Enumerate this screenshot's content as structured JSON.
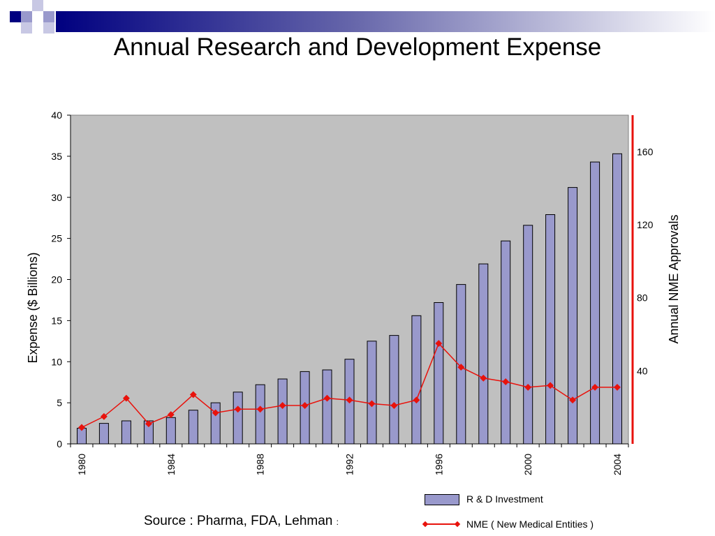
{
  "slide": {
    "title": "Annual Research and Development Expense",
    "source": "Source : Pharma, FDA, Lehman",
    "source_suffix": ":",
    "colors": {
      "bar_fill": "#9999cc",
      "line": "#e8120c",
      "plot_bg": "#c0c0c0",
      "right_axis": "#e8120c",
      "header_dark": "#000080",
      "header_light": "#9999cc"
    }
  },
  "chart_data": {
    "type": "bar",
    "categories": [
      "1980",
      "1981",
      "1982",
      "1983",
      "1984",
      "1985",
      "1986",
      "1987",
      "1988",
      "1989",
      "1990",
      "1991",
      "1992",
      "1993",
      "1994",
      "1995",
      "1996",
      "1997",
      "1998",
      "1999",
      "2000",
      "2001",
      "2002",
      "2003",
      "2004"
    ],
    "x_tick_labels": [
      "1980",
      "1984",
      "1988",
      "1992",
      "1996",
      "2000",
      "2004"
    ],
    "series": [
      {
        "name": "R & D Investment",
        "type": "bar",
        "axis": "left",
        "values": [
          1.9,
          2.5,
          2.8,
          2.8,
          3.2,
          4.1,
          5.0,
          6.3,
          7.2,
          7.9,
          8.8,
          9.0,
          10.3,
          12.5,
          13.2,
          15.6,
          17.2,
          19.4,
          21.9,
          24.7,
          26.6,
          27.9,
          31.2,
          34.3,
          35.3
        ]
      },
      {
        "name": "NME ( New Medical Entities )",
        "type": "line",
        "axis": "right",
        "values": [
          9,
          15,
          25,
          11,
          16,
          27,
          17,
          19,
          19,
          21,
          21,
          25,
          24,
          22,
          21,
          24,
          55,
          42,
          36,
          34,
          31,
          32,
          24,
          31,
          31
        ]
      }
    ],
    "ylabel": "Expense  ($ Billions)",
    "ylim": [
      0,
      40
    ],
    "yticks": [
      0,
      5,
      10,
      15,
      20,
      25,
      30,
      35,
      40
    ],
    "y2label": "Annual NME  Approvals",
    "y2lim": [
      0,
      180
    ],
    "y2ticks": [
      40,
      80,
      120,
      160
    ],
    "grid": false,
    "legend_position": "bottom-right"
  }
}
